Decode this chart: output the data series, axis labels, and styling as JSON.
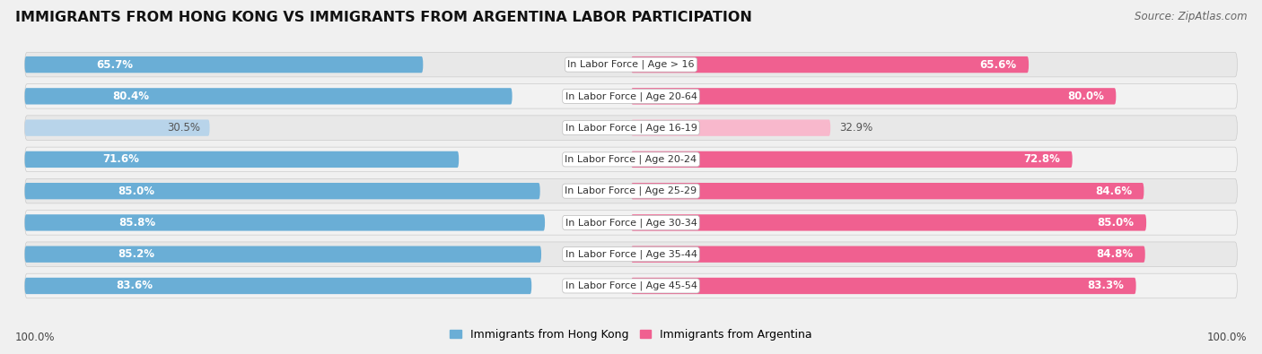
{
  "title": "IMMIGRANTS FROM HONG KONG VS IMMIGRANTS FROM ARGENTINA LABOR PARTICIPATION",
  "source": "Source: ZipAtlas.com",
  "categories": [
    "In Labor Force | Age > 16",
    "In Labor Force | Age 20-64",
    "In Labor Force | Age 16-19",
    "In Labor Force | Age 20-24",
    "In Labor Force | Age 25-29",
    "In Labor Force | Age 30-34",
    "In Labor Force | Age 35-44",
    "In Labor Force | Age 45-54"
  ],
  "hong_kong_values": [
    65.7,
    80.4,
    30.5,
    71.6,
    85.0,
    85.8,
    85.2,
    83.6
  ],
  "argentina_values": [
    65.6,
    80.0,
    32.9,
    72.8,
    84.6,
    85.0,
    84.8,
    83.3
  ],
  "hong_kong_color": "#6aaed6",
  "argentina_color": "#f06090",
  "hong_kong_light_color": "#b8d4ea",
  "argentina_light_color": "#f8b8cc",
  "label_hk": "Immigrants from Hong Kong",
  "label_arg": "Immigrants from Argentina",
  "background_color": "#f0f0f0",
  "row_colors": [
    "#e8e8e8",
    "#f2f2f2"
  ],
  "xlim": 100,
  "footer_value": "100.0%",
  "title_fontsize": 11.5,
  "source_fontsize": 8.5,
  "bar_label_fontsize": 8.5,
  "cat_label_fontsize": 8.0,
  "legend_fontsize": 9.0
}
